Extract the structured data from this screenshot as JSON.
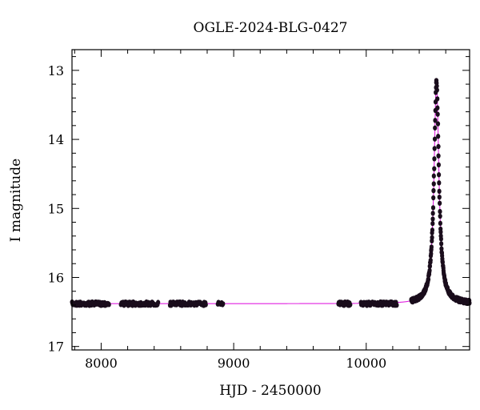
{
  "chart_data": {
    "type": "scatter",
    "title": "OGLE-2024-BLG-0427",
    "xlabel": "HJD - 2450000",
    "ylabel": "I magnitude",
    "xlim": [
      7780,
      10780
    ],
    "ylim": [
      17.05,
      12.7
    ],
    "y_inverted": true,
    "xticks": [
      8000,
      9000,
      10000
    ],
    "yticks": [
      13,
      14,
      15,
      16,
      17
    ],
    "xtick_labels": [
      "8000",
      "9000",
      "10000"
    ],
    "ytick_labels": [
      "13",
      "14",
      "15",
      "16",
      "17"
    ],
    "colors": {
      "points": "#1a0d1c",
      "model": "#e020e0"
    },
    "series": [
      {
        "kind": "observations",
        "groups": [
          {
            "x_range": [
              7780,
              8060
            ],
            "mag": 16.38
          },
          {
            "x_range": [
              8150,
              8430
            ],
            "mag": 16.38
          },
          {
            "x_range": [
              8520,
              8790
            ],
            "mag": 16.38
          },
          {
            "x_range": [
              8880,
              8920
            ],
            "mag": 16.37
          },
          {
            "x_range": [
              9790,
              9880
            ],
            "mag": 16.38
          },
          {
            "x_range": [
              9960,
              10230
            ],
            "mag": 16.38
          },
          {
            "x_range": [
              10340,
              10780
            ],
            "mag": "model"
          }
        ]
      },
      {
        "kind": "model",
        "baseline": 16.38,
        "t0": 10530,
        "peak": 13.15,
        "width": 22
      }
    ]
  }
}
